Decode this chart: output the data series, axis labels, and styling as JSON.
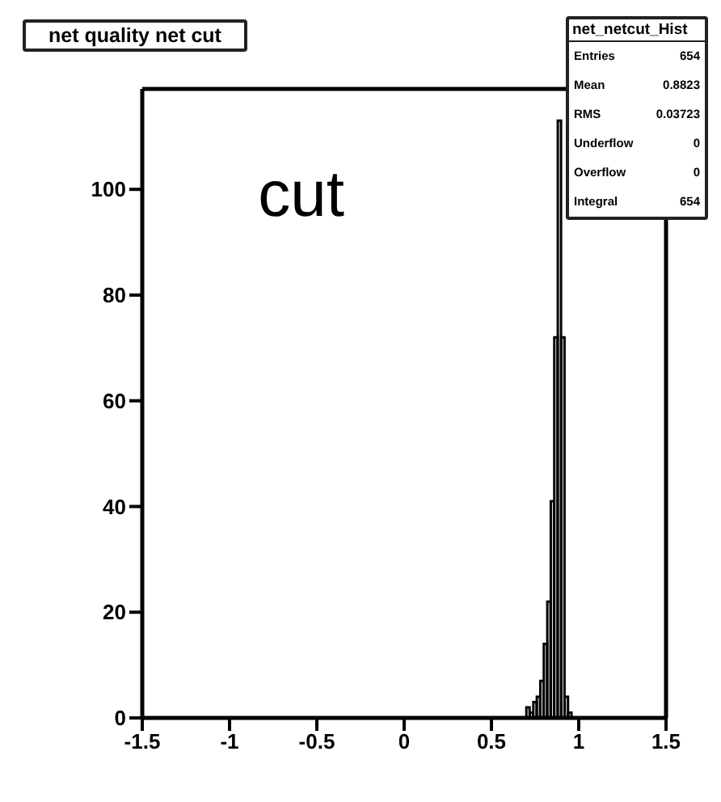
{
  "chart_data": {
    "type": "histogram",
    "title": "net quality net cut",
    "bins": [
      0.7,
      0.72,
      0.74,
      0.76,
      0.78,
      0.8,
      0.82,
      0.84,
      0.86,
      0.88,
      0.9,
      0.92,
      0.94,
      0.96
    ],
    "values": [
      2,
      1,
      3,
      4,
      7,
      14,
      22,
      41,
      72,
      113,
      72,
      4,
      1
    ],
    "color": "#000000",
    "xlim": [
      -1.5,
      1.5
    ],
    "xticks": [
      -1.5,
      -1,
      -0.5,
      0,
      0.5,
      1,
      1.5
    ],
    "ylim": [
      0,
      119
    ],
    "yticks": [
      0,
      20,
      40,
      60,
      80,
      100
    ],
    "grid": false,
    "legend": false,
    "annotations": [
      "cut",
      "net_netcut_Hist",
      "Entries",
      "654",
      "Mean",
      "0.8823",
      "RMS",
      "0.03723",
      "Underflow",
      "0",
      "Overflow",
      "0",
      "Integral",
      "654"
    ]
  }
}
